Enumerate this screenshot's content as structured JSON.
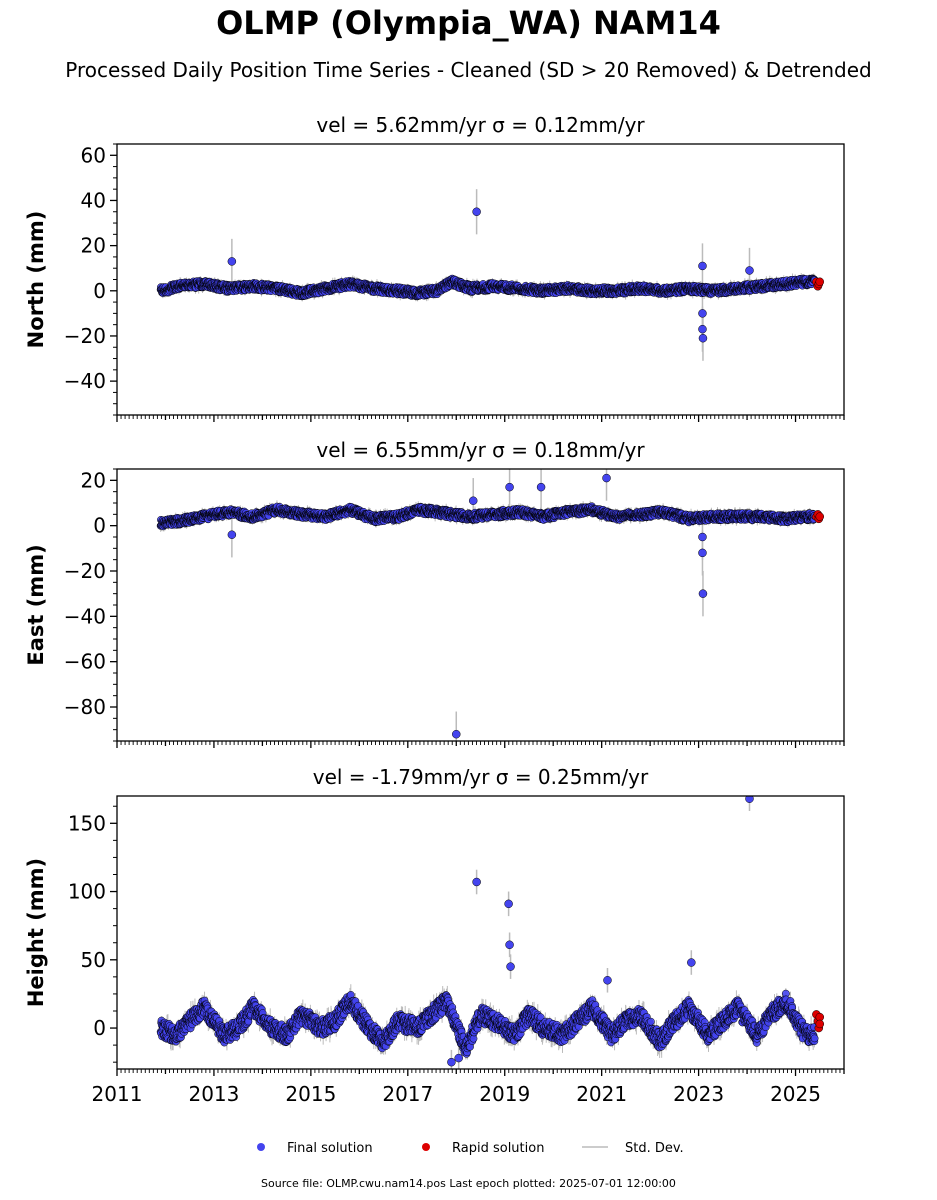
{
  "title": "OLMP (Olympia_WA) NAM14",
  "subtitle": "Processed Daily Position Time Series - Cleaned (SD > 20 Removed) & Detrended",
  "source": "Source file: OLMP.cwu.nam14.pos  Last epoch plotted: 2025-07-01 12:00:00",
  "colors": {
    "final": "#4444ee",
    "rapid": "#dd0000",
    "stddev": "#bbbbbb",
    "edge": "#000000"
  },
  "legend": {
    "placement": "bottom-center",
    "items": [
      {
        "label": "Final solution",
        "color": "#4444ee",
        "kind": "dot"
      },
      {
        "label": "Rapid solution",
        "color": "#dd0000",
        "kind": "dot"
      },
      {
        "label": "Std. Dev.",
        "color": "#bbbbbb",
        "kind": "line"
      }
    ]
  },
  "chart_data": [
    {
      "type": "scatter",
      "panel": "north",
      "title": "vel = 5.62mm/yr   σ = 0.12mm/yr",
      "xlabel": "",
      "ylabel": "North (mm)",
      "xlim": [
        2011.0,
        2026.0
      ],
      "ylim": [
        -55,
        65
      ],
      "yticks": [
        -40,
        -20,
        0,
        20,
        40,
        60
      ],
      "ytick_labels": [
        "−40",
        "−20",
        "0",
        "20",
        "40",
        "60"
      ],
      "series": [
        {
          "name": "Final solution",
          "x": [
            2011.9,
            2012.3,
            2012.8,
            2013.3,
            2013.8,
            2014.3,
            2014.8,
            2015.3,
            2015.8,
            2016.3,
            2016.8,
            2017.2,
            2017.6,
            2017.9,
            2018.3,
            2018.8,
            2019.3,
            2019.8,
            2020.3,
            2020.8,
            2021.3,
            2021.8,
            2022.3,
            2022.8,
            2023.3,
            2023.8,
            2024.3,
            2024.8,
            2025.2
          ],
          "y": [
            0,
            2,
            3,
            1,
            2,
            1,
            -1,
            1,
            3,
            1,
            0,
            -1,
            0,
            4,
            1,
            2,
            1,
            0,
            1,
            0,
            0,
            1,
            0,
            1,
            0,
            1,
            2,
            3,
            4
          ]
        },
        {
          "name": "Final solution outliers",
          "x": [
            2013.37,
            2018.42,
            2023.08,
            2023.08,
            2023.08,
            2023.09,
            2024.05
          ],
          "y": [
            13,
            35,
            11,
            -10,
            -17,
            -21,
            9
          ]
        },
        {
          "name": "Rapid solution",
          "x": [
            2025.43,
            2025.46,
            2025.48,
            2025.5
          ],
          "y": [
            4,
            2,
            3,
            4
          ]
        }
      ]
    },
    {
      "type": "scatter",
      "panel": "east",
      "title": "vel = 6.55mm/yr   σ = 0.18mm/yr",
      "xlabel": "",
      "ylabel": "East (mm)",
      "xlim": [
        2011.0,
        2026.0
      ],
      "ylim": [
        -95,
        25
      ],
      "yticks": [
        -80,
        -60,
        -40,
        -20,
        0,
        20
      ],
      "ytick_labels": [
        "−80",
        "−60",
        "−40",
        "−20",
        "0",
        "20"
      ],
      "series": [
        {
          "name": "Final solution",
          "x": [
            2011.9,
            2012.3,
            2012.8,
            2013.3,
            2013.8,
            2014.3,
            2014.8,
            2015.3,
            2015.8,
            2016.3,
            2016.8,
            2017.2,
            2017.6,
            2017.9,
            2018.3,
            2018.8,
            2019.3,
            2019.8,
            2020.3,
            2020.8,
            2021.3,
            2021.8,
            2022.3,
            2022.8,
            2023.3,
            2023.8,
            2024.3,
            2024.8,
            2025.2
          ],
          "y": [
            1,
            2,
            4,
            6,
            4,
            7,
            5,
            4,
            7,
            3,
            4,
            7,
            6,
            5,
            4,
            5,
            6,
            4,
            6,
            7,
            4,
            5,
            6,
            3,
            4,
            4,
            4,
            3,
            4
          ]
        },
        {
          "name": "Final solution outliers",
          "x": [
            2013.37,
            2018.35,
            2019.1,
            2019.75,
            2021.1,
            2023.08,
            2023.08,
            2023.09,
            2018.0
          ],
          "y": [
            -4,
            11,
            17,
            17,
            21,
            -5,
            -12,
            -30,
            -92
          ]
        },
        {
          "name": "Rapid solution",
          "x": [
            2025.43,
            2025.46,
            2025.48,
            2025.5
          ],
          "y": [
            4,
            5,
            3,
            4
          ]
        }
      ]
    },
    {
      "type": "scatter",
      "panel": "height",
      "title": "vel = -1.79mm/yr   σ = 0.25mm/yr",
      "xlabel": "",
      "ylabel": "Height (mm)",
      "xlim": [
        2011.0,
        2026.0
      ],
      "ylim": [
        -30,
        170
      ],
      "yticks": [
        0,
        50,
        100,
        150
      ],
      "ytick_labels": [
        "0",
        "50",
        "100",
        "150"
      ],
      "xticks": [
        2011,
        2013,
        2015,
        2017,
        2019,
        2021,
        2023,
        2025
      ],
      "xtick_labels": [
        "2011",
        "2013",
        "2015",
        "2017",
        "2019",
        "2021",
        "2023",
        "2025"
      ],
      "series": [
        {
          "name": "Final solution",
          "x": [
            2011.9,
            2012.2,
            2012.5,
            2012.8,
            2013.2,
            2013.5,
            2013.8,
            2014.2,
            2014.5,
            2014.8,
            2015.2,
            2015.5,
            2015.8,
            2016.2,
            2016.5,
            2016.8,
            2017.2,
            2017.5,
            2017.8,
            2018.2,
            2018.5,
            2018.8,
            2019.2,
            2019.5,
            2019.8,
            2020.2,
            2020.5,
            2020.8,
            2021.2,
            2021.5,
            2021.8,
            2022.2,
            2022.5,
            2022.8,
            2023.2,
            2023.5,
            2023.8,
            2024.2,
            2024.5,
            2024.8,
            2025.2
          ],
          "y": [
            0,
            -5,
            5,
            15,
            -5,
            0,
            15,
            0,
            -5,
            10,
            0,
            5,
            20,
            0,
            -10,
            5,
            0,
            10,
            20,
            -15,
            10,
            5,
            -5,
            10,
            0,
            -5,
            5,
            15,
            -5,
            5,
            10,
            -10,
            5,
            15,
            -5,
            5,
            15,
            -5,
            10,
            20,
            -5
          ]
        },
        {
          "name": "Final solution outliers",
          "x": [
            2018.42,
            2019.08,
            2019.1,
            2019.12,
            2021.12,
            2022.85,
            2024.05,
            2017.9,
            2018.05
          ],
          "y": [
            107,
            91,
            61,
            45,
            35,
            48,
            168,
            -25,
            -22
          ]
        },
        {
          "name": "Rapid solution",
          "x": [
            2025.43,
            2025.46,
            2025.48,
            2025.5,
            2025.5
          ],
          "y": [
            10,
            5,
            0,
            8,
            3
          ]
        }
      ]
    }
  ]
}
